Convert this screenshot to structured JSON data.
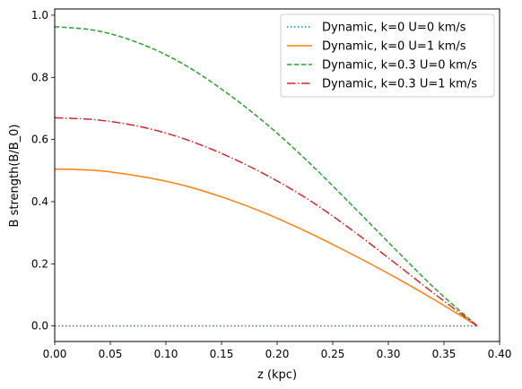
{
  "chart_data": {
    "type": "line",
    "xlabel": "z (kpc)",
    "ylabel": "B strength(B/B_0)",
    "xlim": [
      0,
      0.4
    ],
    "ylim": [
      -0.05,
      1.02
    ],
    "x_ticks": [
      "0.00",
      "0.05",
      "0.10",
      "0.15",
      "0.20",
      "0.25",
      "0.30",
      "0.35",
      "0.40"
    ],
    "y_ticks": [
      "0.0",
      "0.2",
      "0.4",
      "0.6",
      "0.8",
      "1.0"
    ],
    "legend_position": "top-right",
    "grid": false,
    "x": [
      0.0,
      0.038,
      0.076,
      0.114,
      0.152,
      0.19,
      0.228,
      0.266,
      0.304,
      0.342,
      0.38
    ],
    "series": [
      {
        "name": "Dynamic, k=0 U=0 km/s",
        "color": "#1f77b4",
        "style": "dotted",
        "values": [
          0,
          0,
          0,
          0,
          0,
          0,
          0,
          0,
          0,
          0,
          0
        ]
      },
      {
        "name": "Dynamic, k=0 U=1 km/s",
        "color": "#ff7f0e",
        "style": "solid",
        "values": [
          0.505,
          0.5,
          0.482,
          0.454,
          0.413,
          0.362,
          0.301,
          0.233,
          0.161,
          0.083,
          0.0
        ]
      },
      {
        "name": "Dynamic, k=0.3 U=0 km/s",
        "color": "#2ca02c",
        "style": "dashed",
        "values": [
          0.963,
          0.95,
          0.91,
          0.846,
          0.757,
          0.651,
          0.528,
          0.393,
          0.255,
          0.12,
          0.0
        ]
      },
      {
        "name": "Dynamic, k=0.3 U=1 km/s",
        "color": "#d62728",
        "style": "dashdot",
        "values": [
          0.67,
          0.663,
          0.642,
          0.605,
          0.552,
          0.486,
          0.407,
          0.312,
          0.208,
          0.102,
          0.0
        ]
      }
    ]
  }
}
